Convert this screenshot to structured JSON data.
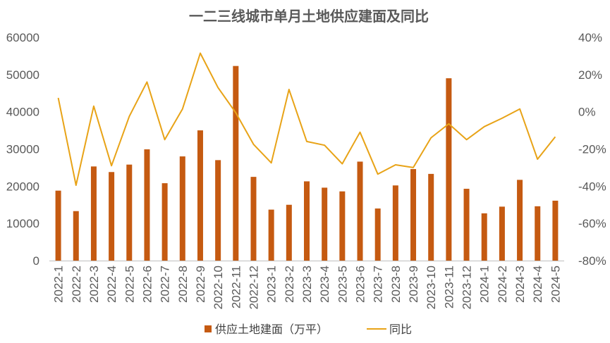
{
  "chart_data": {
    "type": "bar",
    "title": "一二三线城市单月土地供应建面及同比",
    "categories": [
      "2022-1",
      "2022-2",
      "2022-3",
      "2022-4",
      "2022-5",
      "2022-6",
      "2022-7",
      "2022-8",
      "2022-9",
      "2022-10",
      "2022-11",
      "2022-12",
      "2023-1",
      "2023-2",
      "2023-3",
      "2023-4",
      "2023-5",
      "2023-6",
      "2023-7",
      "2023-8",
      "2023-9",
      "2023-10",
      "2023-11",
      "2023-12",
      "2024-1",
      "2024-2",
      "2024-3",
      "2024-4",
      "2024-5"
    ],
    "series": [
      {
        "name": "供应土地建面（万平）",
        "type": "bar",
        "axis": "left",
        "color": "#C55A11",
        "values": [
          18800,
          13300,
          25300,
          23800,
          25800,
          29900,
          20800,
          28000,
          35000,
          27000,
          52300,
          22500,
          13700,
          15000,
          21300,
          19600,
          18600,
          26600,
          14000,
          20200,
          24600,
          23300,
          49000,
          19300,
          12700,
          14500,
          21700,
          14600,
          16100
        ]
      },
      {
        "name": "同比",
        "type": "line",
        "axis": "right",
        "color": "#E8A317",
        "values": [
          7.5,
          -39.5,
          3,
          -29,
          -2.5,
          16,
          -15,
          1.5,
          31.5,
          13,
          -0.5,
          -17.5,
          -27.5,
          12,
          -16,
          -18,
          -28,
          -11,
          -33.5,
          -28.5,
          -30,
          -14,
          -6.5,
          -15,
          -8,
          -3.5,
          1.5,
          -25.5,
          -13.5
        ]
      }
    ],
    "y_left": {
      "min": 0,
      "max": 60000,
      "ticks": [
        "0",
        "10000",
        "20000",
        "30000",
        "40000",
        "50000",
        "60000"
      ]
    },
    "y_right": {
      "min": -80,
      "max": 40,
      "ticks": [
        "-80%",
        "-60%",
        "-40%",
        "-20%",
        "0%",
        "20%",
        "40%"
      ]
    },
    "legend_position": "bottom",
    "grid": false
  },
  "colors": {
    "bar": "#C55A11",
    "line": "#E8A317",
    "axis": "#BFBFBF",
    "text": "#595959"
  }
}
